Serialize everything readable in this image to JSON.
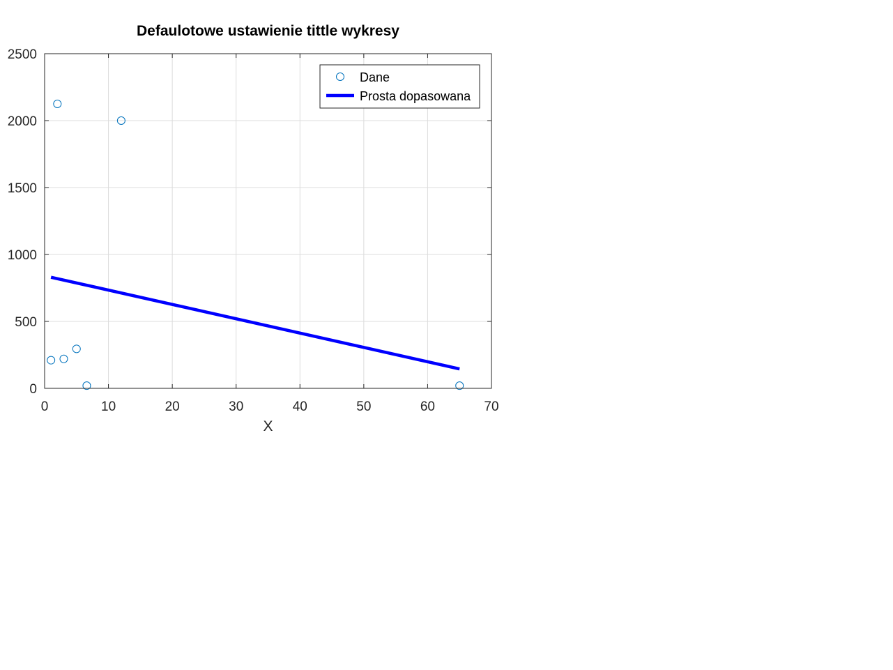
{
  "chart_data": {
    "type": "scatter",
    "title": "Defaulotowe ustawienie tittle wykresy",
    "xlabel": "X",
    "ylabel": "",
    "xlim": [
      0,
      70
    ],
    "ylim": [
      0,
      2500
    ],
    "xticks": [
      0,
      10,
      20,
      30,
      40,
      50,
      60,
      70
    ],
    "yticks": [
      0,
      500,
      1000,
      1500,
      2000,
      2500
    ],
    "grid": true,
    "legend_position": "top-right",
    "series": [
      {
        "name": "Dane",
        "kind": "scatter",
        "marker": "circle-open",
        "color": "#0072BD",
        "x": [
          1,
          2,
          3,
          5,
          6.6,
          12,
          65
        ],
        "y": [
          210,
          2125,
          220,
          295,
          20,
          2000,
          20
        ]
      },
      {
        "name": "Prosta dopasowana",
        "kind": "line",
        "color": "#0000FF",
        "x": [
          1,
          65
        ],
        "y": [
          830,
          145
        ]
      }
    ]
  }
}
